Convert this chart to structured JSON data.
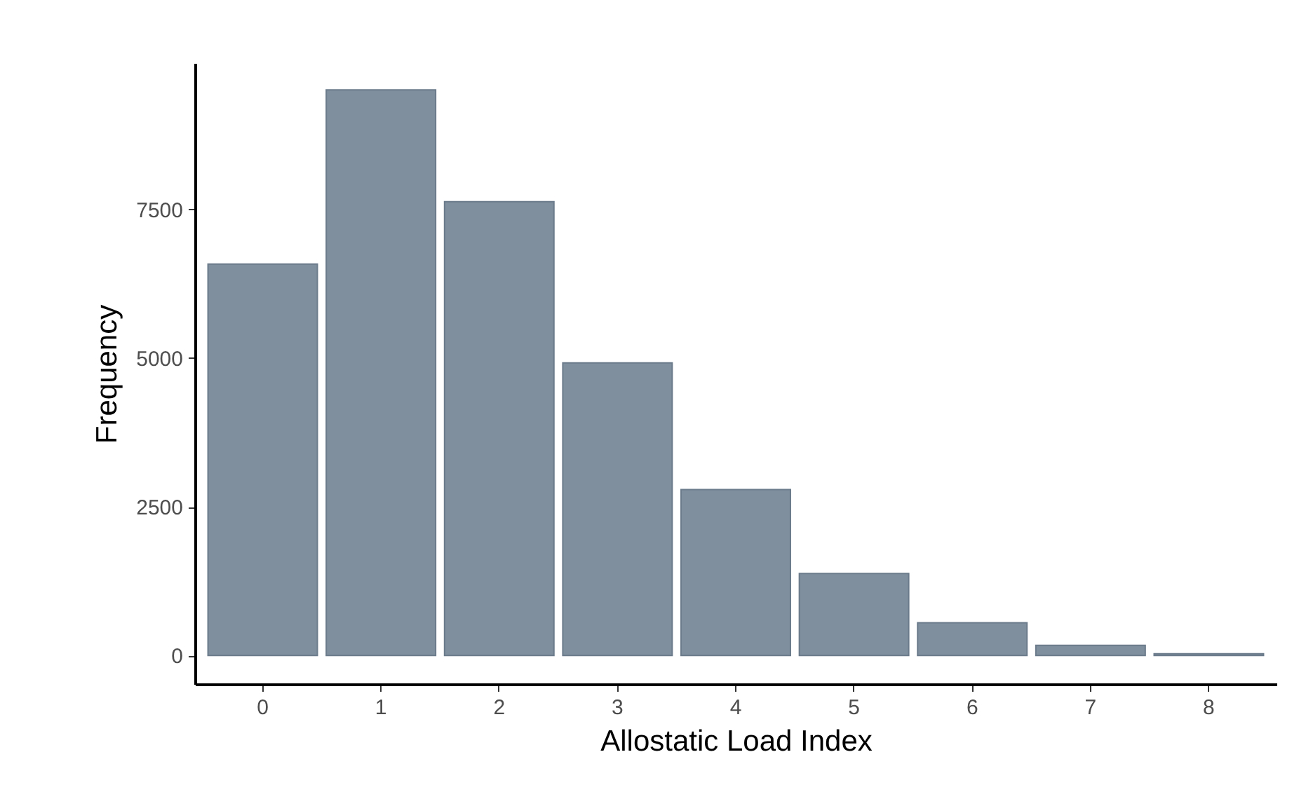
{
  "chart_data": {
    "type": "bar",
    "xlabel": "Allostatic Load Index",
    "ylabel": "Frequency",
    "categories": [
      "0",
      "1",
      "2",
      "3",
      "4",
      "5",
      "6",
      "7",
      "8"
    ],
    "values": [
      6580,
      9510,
      7630,
      4920,
      2790,
      1380,
      550,
      170,
      30
    ],
    "color": "#7f8f9e",
    "ylim": [
      -480,
      9960
    ],
    "yticks": [
      0,
      2500,
      5000,
      7500
    ],
    "grid": false
  }
}
